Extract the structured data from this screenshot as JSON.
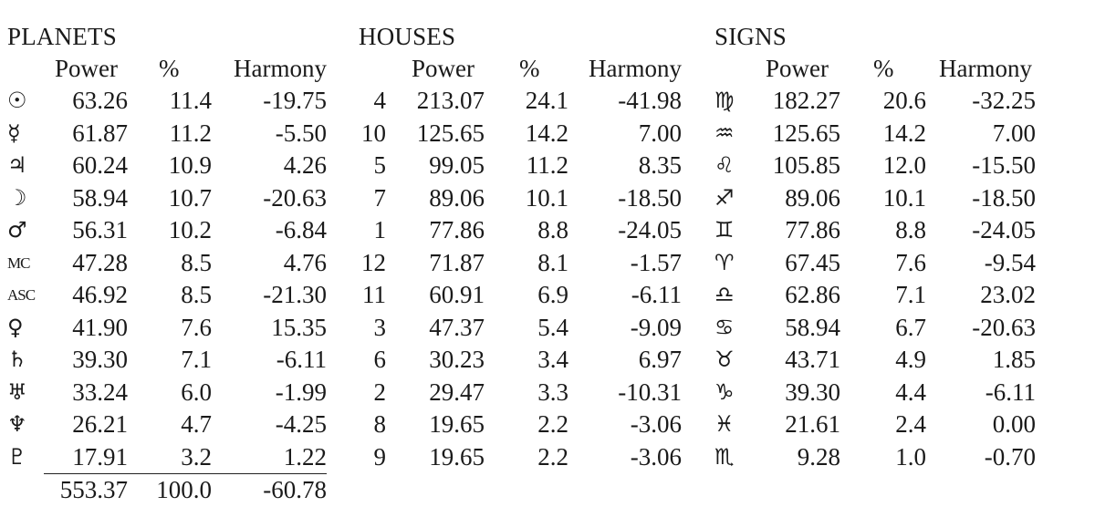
{
  "planets": {
    "title": "PLANETS",
    "headers": [
      "Power",
      "%",
      "Harmony"
    ],
    "rows": [
      {
        "sym": "☉",
        "power": "63.26",
        "pct": "11.4",
        "harmony": "-19.75"
      },
      {
        "sym": "☿",
        "power": "61.87",
        "pct": "11.2",
        "harmony": "-5.50"
      },
      {
        "sym": "♃",
        "power": "60.24",
        "pct": "10.9",
        "harmony": "4.26"
      },
      {
        "sym": "☽",
        "power": "58.94",
        "pct": "10.7",
        "harmony": "-20.63"
      },
      {
        "sym": "♂",
        "power": "56.31",
        "pct": "10.2",
        "harmony": "-6.84"
      },
      {
        "sym": "MC",
        "power": "47.28",
        "pct": "8.5",
        "harmony": "4.76"
      },
      {
        "sym": "ASC",
        "power": "46.92",
        "pct": "8.5",
        "harmony": "-21.30"
      },
      {
        "sym": "♀",
        "power": "41.90",
        "pct": "7.6",
        "harmony": "15.35"
      },
      {
        "sym": "♄",
        "power": "39.30",
        "pct": "7.1",
        "harmony": "-6.11"
      },
      {
        "sym": "♅",
        "power": "33.24",
        "pct": "6.0",
        "harmony": "-1.99"
      },
      {
        "sym": "♆",
        "power": "26.21",
        "pct": "4.7",
        "harmony": "-4.25"
      },
      {
        "sym": "♇",
        "power": "17.91",
        "pct": "3.2",
        "harmony": "1.22"
      }
    ],
    "totals": {
      "power": "553.37",
      "pct": "100.0",
      "harmony": "-60.78"
    }
  },
  "houses": {
    "title": "HOUSES",
    "headers": [
      "Power",
      "%",
      "Harmony"
    ],
    "rows": [
      {
        "sym": "4",
        "power": "213.07",
        "pct": "24.1",
        "harmony": "-41.98"
      },
      {
        "sym": "10",
        "power": "125.65",
        "pct": "14.2",
        "harmony": "7.00"
      },
      {
        "sym": "5",
        "power": "99.05",
        "pct": "11.2",
        "harmony": "8.35"
      },
      {
        "sym": "7",
        "power": "89.06",
        "pct": "10.1",
        "harmony": "-18.50"
      },
      {
        "sym": "1",
        "power": "77.86",
        "pct": "8.8",
        "harmony": "-24.05"
      },
      {
        "sym": "12",
        "power": "71.87",
        "pct": "8.1",
        "harmony": "-1.57"
      },
      {
        "sym": "11",
        "power": "60.91",
        "pct": "6.9",
        "harmony": "-6.11"
      },
      {
        "sym": "3",
        "power": "47.37",
        "pct": "5.4",
        "harmony": "-9.09"
      },
      {
        "sym": "6",
        "power": "30.23",
        "pct": "3.4",
        "harmony": "6.97"
      },
      {
        "sym": "2",
        "power": "29.47",
        "pct": "3.3",
        "harmony": "-10.31"
      },
      {
        "sym": "8",
        "power": "19.65",
        "pct": "2.2",
        "harmony": "-3.06"
      },
      {
        "sym": "9",
        "power": "19.65",
        "pct": "2.2",
        "harmony": "-3.06"
      }
    ]
  },
  "signs": {
    "title": "SIGNS",
    "headers": [
      "Power",
      "%",
      "Harmony"
    ],
    "rows": [
      {
        "sym": "♍",
        "power": "182.27",
        "pct": "20.6",
        "harmony": "-32.25"
      },
      {
        "sym": "♒",
        "power": "125.65",
        "pct": "14.2",
        "harmony": "7.00"
      },
      {
        "sym": "♌",
        "power": "105.85",
        "pct": "12.0",
        "harmony": "-15.50"
      },
      {
        "sym": "♐",
        "power": "89.06",
        "pct": "10.1",
        "harmony": "-18.50"
      },
      {
        "sym": "♊",
        "power": "77.86",
        "pct": "8.8",
        "harmony": "-24.05"
      },
      {
        "sym": "♈",
        "power": "67.45",
        "pct": "7.6",
        "harmony": "-9.54"
      },
      {
        "sym": "♎",
        "power": "62.86",
        "pct": "7.1",
        "harmony": "23.02"
      },
      {
        "sym": "♋",
        "power": "58.94",
        "pct": "6.7",
        "harmony": "-20.63"
      },
      {
        "sym": "♉",
        "power": "43.71",
        "pct": "4.9",
        "harmony": "1.85"
      },
      {
        "sym": "♑",
        "power": "39.30",
        "pct": "4.4",
        "harmony": "-6.11"
      },
      {
        "sym": "♓",
        "power": "21.61",
        "pct": "2.4",
        "harmony": "0.00"
      },
      {
        "sym": "♏",
        "power": "9.28",
        "pct": "1.0",
        "harmony": "-0.70"
      }
    ]
  }
}
